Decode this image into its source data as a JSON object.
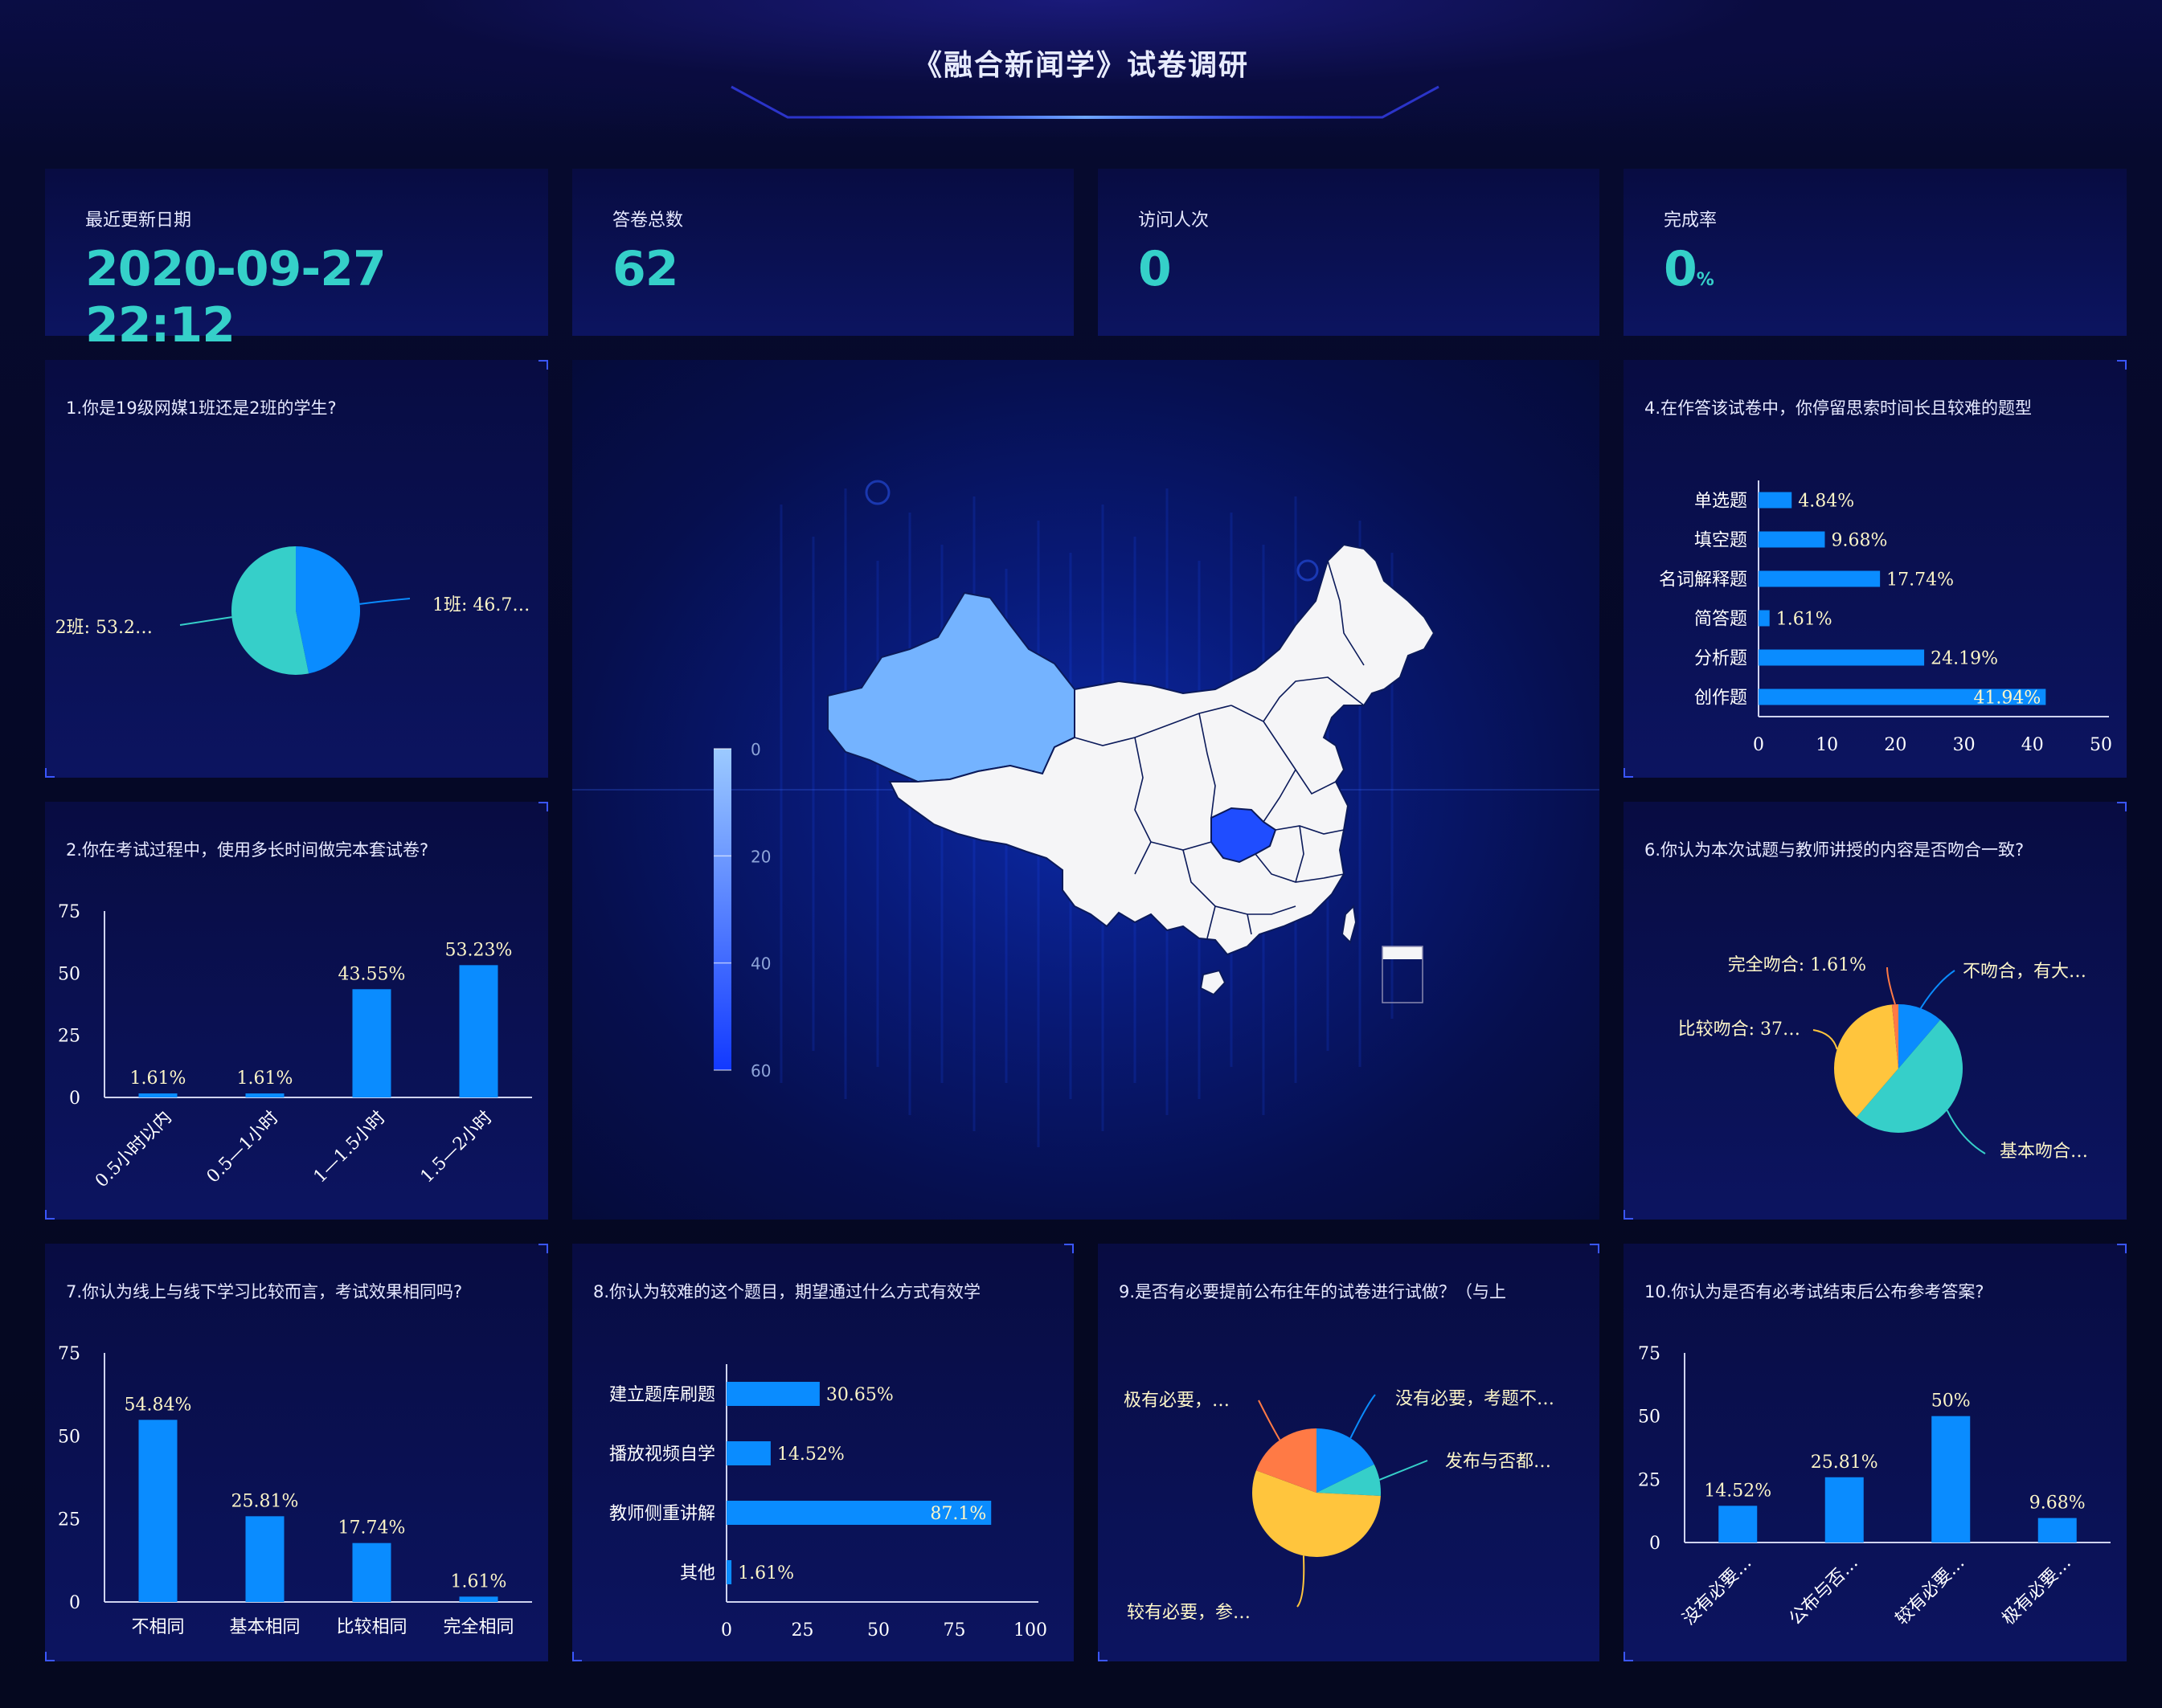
{
  "header": {
    "title": "《融合新闻学》试卷调研"
  },
  "stats": [
    {
      "label": "最近更新日期",
      "value": "2020-09-27 22:12",
      "unit": ""
    },
    {
      "label": "答卷总数",
      "value": "62",
      "unit": ""
    },
    {
      "label": "访问人次",
      "value": "0",
      "unit": ""
    },
    {
      "label": "完成率",
      "value": "0",
      "unit": "%"
    }
  ],
  "colors": {
    "blue": "#0a8cff",
    "teal": "#36cfc9",
    "yellow": "#ffc53d",
    "orange": "#ff7a45",
    "accent": "#35d0c9"
  },
  "map": {
    "legend_ticks": [
      "0",
      "20",
      "40",
      "60"
    ],
    "legend_range": [
      0,
      60
    ]
  },
  "chart_data": [
    {
      "id": "q1",
      "type": "pie",
      "title": "1.你是19级网媒1班还是2班的学生?",
      "slices": [
        {
          "name": "1班",
          "value": 46.77,
          "label": "1班: 46.7…",
          "color": "#0a8cff"
        },
        {
          "name": "2班",
          "value": 53.23,
          "label": "2班: 53.2…",
          "color": "#36cfc9"
        }
      ]
    },
    {
      "id": "q2",
      "type": "bar",
      "title": "2.你在考试过程中，使用多长时间做完本套试卷?",
      "categories": [
        "0.5小时以内",
        "0.5—1小时",
        "1—1.5小时",
        "1.5—2小时"
      ],
      "values": [
        1.61,
        1.61,
        43.55,
        53.23
      ],
      "labels": [
        "1.61%",
        "1.61%",
        "43.55%",
        "53.23%"
      ],
      "yticks": [
        "0",
        "25",
        "50",
        "75"
      ],
      "ylim": [
        0,
        75
      ]
    },
    {
      "id": "q4",
      "type": "bar-horizontal",
      "title": "4.在作答该试卷中，你停留思索时间长且较难的题型",
      "categories": [
        "单选题",
        "填空题",
        "名词解释题",
        "简答题",
        "分析题",
        "创作题"
      ],
      "values": [
        4.84,
        9.68,
        17.74,
        1.61,
        24.19,
        41.94
      ],
      "labels": [
        "4.84%",
        "9.68%",
        "17.74%",
        "1.61%",
        "24.19%",
        "41.94%"
      ],
      "xticks": [
        "0",
        "10",
        "20",
        "30",
        "40",
        "50"
      ],
      "xlim": [
        0,
        50
      ]
    },
    {
      "id": "q6",
      "type": "pie",
      "title": "6.你认为本次试题与教师讲授的内容是否吻合一致?",
      "slices": [
        {
          "name": "不吻合，有大…",
          "value": 11.29,
          "label": "不吻合，有大…",
          "color": "#0a8cff"
        },
        {
          "name": "基本吻合…",
          "value": 50.0,
          "label": "基本吻合…",
          "color": "#36cfc9"
        },
        {
          "name": "比较吻合",
          "value": 37.1,
          "label": "比较吻合: 37…",
          "color": "#ffc53d"
        },
        {
          "name": "完全吻合",
          "value": 1.61,
          "label": "完全吻合: 1.61%",
          "color": "#ff7a45"
        }
      ]
    },
    {
      "id": "q7",
      "type": "bar",
      "title": "7.你认为线上与线下学习比较而言，考试效果相同吗?",
      "categories": [
        "不相同",
        "基本相同",
        "比较相同",
        "完全相同"
      ],
      "values": [
        54.84,
        25.81,
        17.74,
        1.61
      ],
      "labels": [
        "54.84%",
        "25.81%",
        "17.74%",
        "1.61%"
      ],
      "yticks": [
        "0",
        "25",
        "50",
        "75"
      ],
      "ylim": [
        0,
        75
      ]
    },
    {
      "id": "q8",
      "type": "bar-horizontal",
      "title": "8.你认为较难的这个题目，期望通过什么方式有效学",
      "categories": [
        "建立题库刷题",
        "播放视频自学",
        "教师侧重讲解",
        "其他"
      ],
      "values": [
        30.65,
        14.52,
        87.1,
        1.61
      ],
      "labels": [
        "30.65%",
        "14.52%",
        "87.1%",
        "1.61%"
      ],
      "xticks": [
        "0",
        "25",
        "50",
        "75",
        "100"
      ],
      "xlim": [
        0,
        100
      ]
    },
    {
      "id": "q9",
      "type": "pie",
      "title": "9.是否有必要提前公布往年的试卷进行试做？（与上",
      "slices": [
        {
          "name": "没有必要，考题不…",
          "value": 17.74,
          "label": "没有必要，考题不…",
          "color": "#0a8cff"
        },
        {
          "name": "发布与否都…",
          "value": 8.06,
          "label": "发布与否都…",
          "color": "#36cfc9"
        },
        {
          "name": "较有必要，参…",
          "value": 54.84,
          "label": "较有必要，参…",
          "color": "#ffc53d"
        },
        {
          "name": "极有必要，…",
          "value": 19.35,
          "label": "极有必要，…",
          "color": "#ff7a45"
        }
      ]
    },
    {
      "id": "q10",
      "type": "bar",
      "title": "10.你认为是否有必考试结束后公布参考答案?",
      "categories": [
        "没有必要…",
        "公布与否…",
        "较有必要…",
        "极有必要…"
      ],
      "values": [
        14.52,
        25.81,
        50,
        9.68
      ],
      "labels": [
        "14.52%",
        "25.81%",
        "50%",
        "9.68%"
      ],
      "yticks": [
        "0",
        "25",
        "50",
        "75"
      ],
      "ylim": [
        0,
        75
      ]
    }
  ]
}
